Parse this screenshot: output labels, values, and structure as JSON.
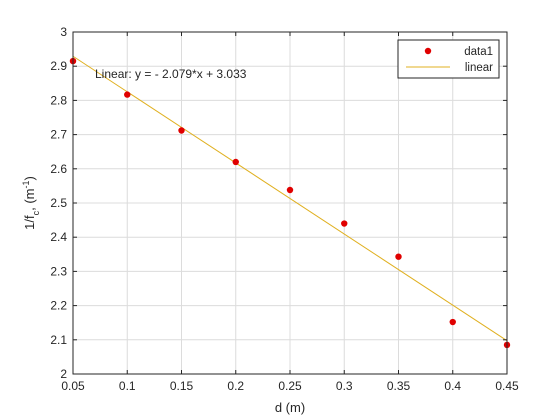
{
  "chart_data": {
    "type": "scatter",
    "xlabel": "d (m)",
    "ylabel_main": "1/f",
    "ylabel_sub": "c",
    "ylabel_tail": ", (m",
    "ylabel_sup": "-1",
    "ylabel_close": ")",
    "xlim": [
      0.05,
      0.45
    ],
    "ylim": [
      2.0,
      3.0
    ],
    "x_ticks": [
      "0.05",
      "0.1",
      "0.15",
      "0.2",
      "0.25",
      "0.3",
      "0.35",
      "0.4",
      "0.45"
    ],
    "y_ticks": [
      "2",
      "2.1",
      "2.2",
      "2.3",
      "2.4",
      "2.5",
      "2.6",
      "2.7",
      "2.8",
      "2.9",
      "3"
    ],
    "grid": true,
    "legend_position": "top-right",
    "annotation": "Linear:  y = - 2.079*x + 3.033",
    "series": [
      {
        "name": "data1",
        "kind": "scatter",
        "color": "#e00000",
        "x": [
          0.05,
          0.1,
          0.15,
          0.2,
          0.25,
          0.3,
          0.35,
          0.4,
          0.45
        ],
        "y": [
          2.915,
          2.817,
          2.712,
          2.62,
          2.538,
          2.44,
          2.343,
          2.152,
          2.085
        ]
      },
      {
        "name": "linear",
        "kind": "line",
        "color": "#e0b020",
        "slope": -2.079,
        "intercept": 3.033
      }
    ]
  }
}
